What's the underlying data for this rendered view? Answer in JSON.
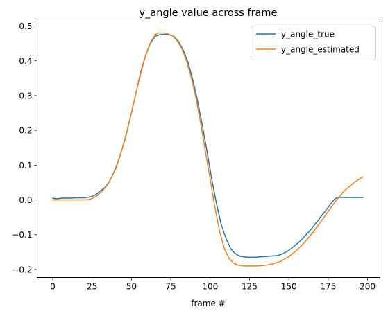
{
  "chart_data": {
    "type": "line",
    "title": "y_angle value across frame",
    "xlabel": "frame #",
    "ylabel": "",
    "xlim": [
      -9.9,
      207.9
    ],
    "ylim": [
      -0.223,
      0.514
    ],
    "x_ticks": [
      0,
      25,
      50,
      75,
      100,
      125,
      150,
      175,
      200
    ],
    "x_tick_labels": [
      "0",
      "25",
      "50",
      "75",
      "100",
      "125",
      "150",
      "175",
      "200"
    ],
    "y_ticks": [
      -0.2,
      -0.1,
      0.0,
      0.1,
      0.2,
      0.3,
      0.4,
      0.5
    ],
    "y_tick_labels": [
      "−0.2",
      "−0.1",
      "0.0",
      "0.1",
      "0.2",
      "0.3",
      "0.4",
      "0.5"
    ],
    "grid": false,
    "legend_position": "top-right",
    "series": [
      {
        "name": "y_angle_true",
        "color": "#1f77b4",
        "points": [
          [
            0,
            0.005
          ],
          [
            2,
            0.003
          ],
          [
            4,
            0.004
          ],
          [
            6,
            0.005
          ],
          [
            8,
            0.005
          ],
          [
            10,
            0.005
          ],
          [
            12,
            0.005
          ],
          [
            14,
            0.006
          ],
          [
            16,
            0.006
          ],
          [
            18,
            0.006
          ],
          [
            20,
            0.006
          ],
          [
            22,
            0.007
          ],
          [
            25,
            0.01
          ],
          [
            28,
            0.017
          ],
          [
            30,
            0.025
          ],
          [
            33,
            0.035
          ],
          [
            36,
            0.053
          ],
          [
            40,
            0.09
          ],
          [
            43,
            0.13
          ],
          [
            46,
            0.175
          ],
          [
            50,
            0.25
          ],
          [
            53,
            0.31
          ],
          [
            56,
            0.37
          ],
          [
            59,
            0.415
          ],
          [
            62,
            0.45
          ],
          [
            65,
            0.47
          ],
          [
            68,
            0.475
          ],
          [
            71,
            0.476
          ],
          [
            74,
            0.475
          ],
          [
            77,
            0.47
          ],
          [
            80,
            0.455
          ],
          [
            83,
            0.43
          ],
          [
            86,
            0.395
          ],
          [
            89,
            0.345
          ],
          [
            92,
            0.285
          ],
          [
            95,
            0.215
          ],
          [
            98,
            0.14
          ],
          [
            101,
            0.06
          ],
          [
            104,
            -0.01
          ],
          [
            107,
            -0.07
          ],
          [
            110,
            -0.11
          ],
          [
            113,
            -0.14
          ],
          [
            116,
            -0.155
          ],
          [
            119,
            -0.162
          ],
          [
            122,
            -0.164
          ],
          [
            125,
            -0.165
          ],
          [
            128,
            -0.165
          ],
          [
            131,
            -0.164
          ],
          [
            134,
            -0.163
          ],
          [
            137,
            -0.162
          ],
          [
            140,
            -0.161
          ],
          [
            143,
            -0.16
          ],
          [
            146,
            -0.155
          ],
          [
            149,
            -0.148
          ],
          [
            152,
            -0.138
          ],
          [
            155,
            -0.127
          ],
          [
            158,
            -0.115
          ],
          [
            161,
            -0.1
          ],
          [
            164,
            -0.085
          ],
          [
            167,
            -0.068
          ],
          [
            170,
            -0.05
          ],
          [
            173,
            -0.033
          ],
          [
            176,
            -0.015
          ],
          [
            179,
            0.002
          ],
          [
            181,
            0.007
          ],
          [
            185,
            0.007
          ],
          [
            190,
            0.007
          ],
          [
            197,
            0.007
          ]
        ]
      },
      {
        "name": "y_angle_estimated",
        "color": "#ff7f0e",
        "points": [
          [
            0,
            0.0
          ],
          [
            5,
            0.0
          ],
          [
            10,
            0.0
          ],
          [
            15,
            0.0
          ],
          [
            20,
            0.0
          ],
          [
            23,
            0.001
          ],
          [
            26,
            0.006
          ],
          [
            29,
            0.015
          ],
          [
            32,
            0.028
          ],
          [
            35,
            0.045
          ],
          [
            38,
            0.07
          ],
          [
            41,
            0.105
          ],
          [
            44,
            0.145
          ],
          [
            47,
            0.195
          ],
          [
            50,
            0.25
          ],
          [
            53,
            0.31
          ],
          [
            56,
            0.365
          ],
          [
            59,
            0.415
          ],
          [
            62,
            0.452
          ],
          [
            65,
            0.475
          ],
          [
            67,
            0.48
          ],
          [
            70,
            0.48
          ],
          [
            73,
            0.478
          ],
          [
            76,
            0.472
          ],
          [
            79,
            0.458
          ],
          [
            82,
            0.435
          ],
          [
            85,
            0.4
          ],
          [
            88,
            0.352
          ],
          [
            91,
            0.292
          ],
          [
            94,
            0.22
          ],
          [
            97,
            0.14
          ],
          [
            100,
            0.06
          ],
          [
            103,
            -0.02
          ],
          [
            106,
            -0.09
          ],
          [
            109,
            -0.14
          ],
          [
            112,
            -0.168
          ],
          [
            115,
            -0.182
          ],
          [
            118,
            -0.188
          ],
          [
            121,
            -0.19
          ],
          [
            125,
            -0.19
          ],
          [
            130,
            -0.19
          ],
          [
            135,
            -0.188
          ],
          [
            140,
            -0.184
          ],
          [
            145,
            -0.176
          ],
          [
            150,
            -0.163
          ],
          [
            155,
            -0.145
          ],
          [
            160,
            -0.122
          ],
          [
            165,
            -0.095
          ],
          [
            170,
            -0.065
          ],
          [
            175,
            -0.033
          ],
          [
            180,
            -0.002
          ],
          [
            185,
            0.025
          ],
          [
            190,
            0.045
          ],
          [
            194,
            0.058
          ],
          [
            197,
            0.066
          ]
        ]
      }
    ]
  }
}
